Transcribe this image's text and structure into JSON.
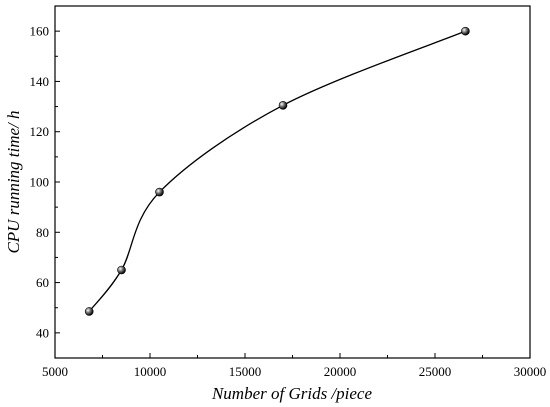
{
  "chart_data": {
    "type": "line",
    "title": "",
    "xlabel": "Number of Grids /piece",
    "ylabel": "CPU running time/ h",
    "xlim": [
      5000,
      30000
    ],
    "ylim": [
      30,
      170
    ],
    "x_ticks": [
      5000,
      10000,
      15000,
      20000,
      25000,
      30000
    ],
    "y_ticks": [
      40,
      60,
      80,
      100,
      120,
      140,
      160
    ],
    "grid": false,
    "legend": "none",
    "smooth": true,
    "marker": "sphere",
    "series": [
      {
        "x": [
          6800,
          8500,
          10500,
          17000,
          26600
        ],
        "y": [
          48.5,
          65,
          96,
          130.5,
          160
        ],
        "color": "#000000"
      }
    ]
  }
}
